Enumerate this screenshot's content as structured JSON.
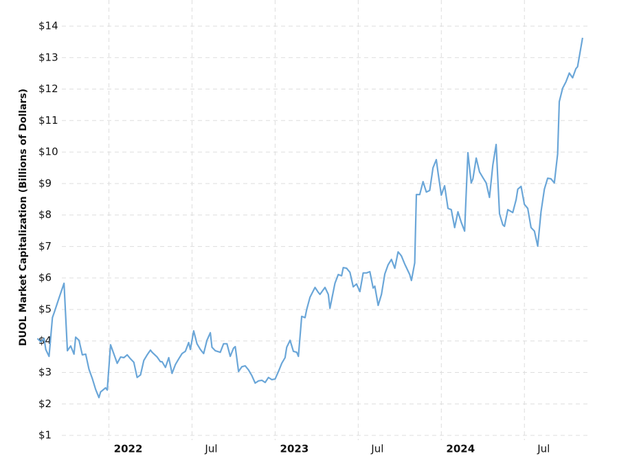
{
  "chart_data": {
    "type": "line",
    "y_label": "DUOL Market Capitalization (Billions of Dollars)",
    "x": [
      2021.57,
      2021.59,
      2021.61,
      2021.62,
      2021.64,
      2021.66,
      2021.67,
      2021.7,
      2021.73,
      2021.75,
      2021.77,
      2021.79,
      2021.8,
      2021.82,
      2021.84,
      2021.86,
      2021.88,
      2021.9,
      2021.92,
      2021.94,
      2021.95,
      2021.98,
      2021.99,
      2022.01,
      2022.03,
      2022.05,
      2022.07,
      2022.09,
      2022.11,
      2022.13,
      2022.15,
      2022.17,
      2022.19,
      2022.21,
      2022.23,
      2022.25,
      2022.26,
      2022.29,
      2022.31,
      2022.32,
      2022.34,
      2022.36,
      2022.38,
      2022.4,
      2022.42,
      2022.44,
      2022.46,
      2022.48,
      2022.49,
      2022.51,
      2022.53,
      2022.55,
      2022.57,
      2022.59,
      2022.61,
      2022.62,
      2022.64,
      2022.67,
      2022.69,
      2022.71,
      2022.73,
      2022.75,
      2022.76,
      2022.78,
      2022.8,
      2022.82,
      2022.84,
      2022.86,
      2022.88,
      2022.9,
      2022.92,
      2022.94,
      2022.96,
      2022.98,
      2023.0,
      2023.02,
      2023.04,
      2023.06,
      2023.07,
      2023.09,
      2023.11,
      2023.13,
      2023.14,
      2023.16,
      2023.18,
      2023.19,
      2023.21,
      2023.24,
      2023.26,
      2023.27,
      2023.3,
      2023.32,
      2023.33,
      2023.36,
      2023.38,
      2023.4,
      2023.41,
      2023.43,
      2023.45,
      2023.47,
      2023.49,
      2023.51,
      2023.53,
      2023.55,
      2023.57,
      2023.59,
      2023.6,
      2023.62,
      2023.64,
      2023.66,
      2023.68,
      2023.7,
      2023.72,
      2023.74,
      2023.76,
      2023.78,
      2023.81,
      2023.82,
      2023.84,
      2023.85,
      2023.87,
      2023.89,
      2023.91,
      2023.93,
      2023.95,
      2023.97,
      2023.98,
      2024.0,
      2024.02,
      2024.04,
      2024.06,
      2024.08,
      2024.1,
      2024.12,
      2024.14,
      2024.16,
      2024.18,
      2024.19,
      2024.21,
      2024.23,
      2024.25,
      2024.27,
      2024.29,
      2024.31,
      2024.33,
      2024.35,
      2024.37,
      2024.38,
      2024.4,
      2024.43,
      2024.45,
      2024.46,
      2024.48,
      2024.5,
      2024.52,
      2024.54,
      2024.56,
      2024.58,
      2024.6,
      2024.62,
      2024.64,
      2024.66,
      2024.68,
      2024.7,
      2024.71,
      2024.73,
      2024.75,
      2024.77,
      2024.79,
      2024.81,
      2024.82,
      2024.85
    ],
    "series": [
      {
        "name": "DUOL",
        "color": "#6aa6d8",
        "values": [
          4.08,
          3.97,
          4.08,
          3.73,
          3.51,
          4.74,
          4.89,
          5.37,
          5.83,
          3.69,
          3.84,
          3.58,
          4.12,
          4.02,
          3.56,
          3.58,
          3.1,
          2.81,
          2.46,
          2.2,
          2.38,
          2.51,
          2.44,
          3.88,
          3.58,
          3.29,
          3.49,
          3.47,
          3.56,
          3.43,
          3.32,
          2.84,
          2.92,
          3.38,
          3.56,
          3.71,
          3.64,
          3.49,
          3.34,
          3.34,
          3.16,
          3.47,
          2.97,
          3.25,
          3.43,
          3.6,
          3.67,
          3.95,
          3.73,
          4.32,
          3.91,
          3.73,
          3.6,
          4.02,
          4.26,
          3.8,
          3.69,
          3.64,
          3.91,
          3.91,
          3.51,
          3.77,
          3.82,
          3.03,
          3.18,
          3.21,
          3.08,
          2.9,
          2.66,
          2.73,
          2.75,
          2.68,
          2.84,
          2.77,
          2.79,
          3.03,
          3.29,
          3.47,
          3.8,
          4.02,
          3.67,
          3.64,
          3.51,
          4.78,
          4.74,
          5.0,
          5.39,
          5.7,
          5.54,
          5.48,
          5.7,
          5.48,
          5.04,
          5.83,
          6.11,
          6.07,
          6.33,
          6.31,
          6.18,
          5.72,
          5.81,
          5.57,
          6.16,
          6.16,
          6.2,
          5.68,
          5.74,
          5.13,
          5.48,
          6.13,
          6.42,
          6.59,
          6.31,
          6.83,
          6.7,
          6.44,
          6.11,
          5.92,
          6.48,
          8.65,
          8.65,
          9.06,
          8.73,
          8.78,
          9.5,
          9.76,
          9.35,
          8.63,
          8.93,
          8.21,
          8.17,
          7.6,
          8.1,
          7.77,
          7.49,
          9.98,
          9.02,
          9.15,
          9.81,
          9.37,
          9.19,
          9.02,
          8.56,
          9.59,
          10.24,
          8.04,
          7.69,
          7.64,
          8.17,
          8.08,
          8.49,
          8.82,
          8.91,
          8.34,
          8.21,
          7.6,
          7.49,
          7.01,
          8.1,
          8.82,
          9.17,
          9.15,
          9.02,
          9.94,
          11.6,
          12.03,
          12.23,
          12.51,
          12.36,
          12.65,
          12.71,
          13.63
        ]
      }
    ],
    "xlim": [
      2021.51,
      2024.9
    ],
    "xticks": [
      2022,
      {
        "value": 2022.5,
        "label": "Jul"
      },
      2023,
      {
        "value": 2023.5,
        "label": "Jul"
      },
      2024,
      {
        "value": 2024.5,
        "label": "Jul"
      }
    ],
    "ylim": [
      0.52,
      14.83
    ],
    "yticks": [
      {
        "value": 1,
        "label": "$1"
      },
      {
        "value": 2,
        "label": "$2"
      },
      {
        "value": 3,
        "label": "$3"
      },
      {
        "value": 4,
        "label": "$4"
      },
      {
        "value": 5,
        "label": "$5"
      },
      {
        "value": 6,
        "label": "$6"
      },
      {
        "value": 7,
        "label": "$7"
      },
      {
        "value": 8,
        "label": "$8"
      },
      {
        "value": 9,
        "label": "$9"
      },
      {
        "value": 10,
        "label": "$10"
      },
      {
        "value": 11,
        "label": "$11"
      },
      {
        "value": 12,
        "label": "$12"
      },
      {
        "value": 13,
        "label": "$13"
      },
      {
        "value": 14,
        "label": "$14"
      }
    ],
    "grid": true
  }
}
